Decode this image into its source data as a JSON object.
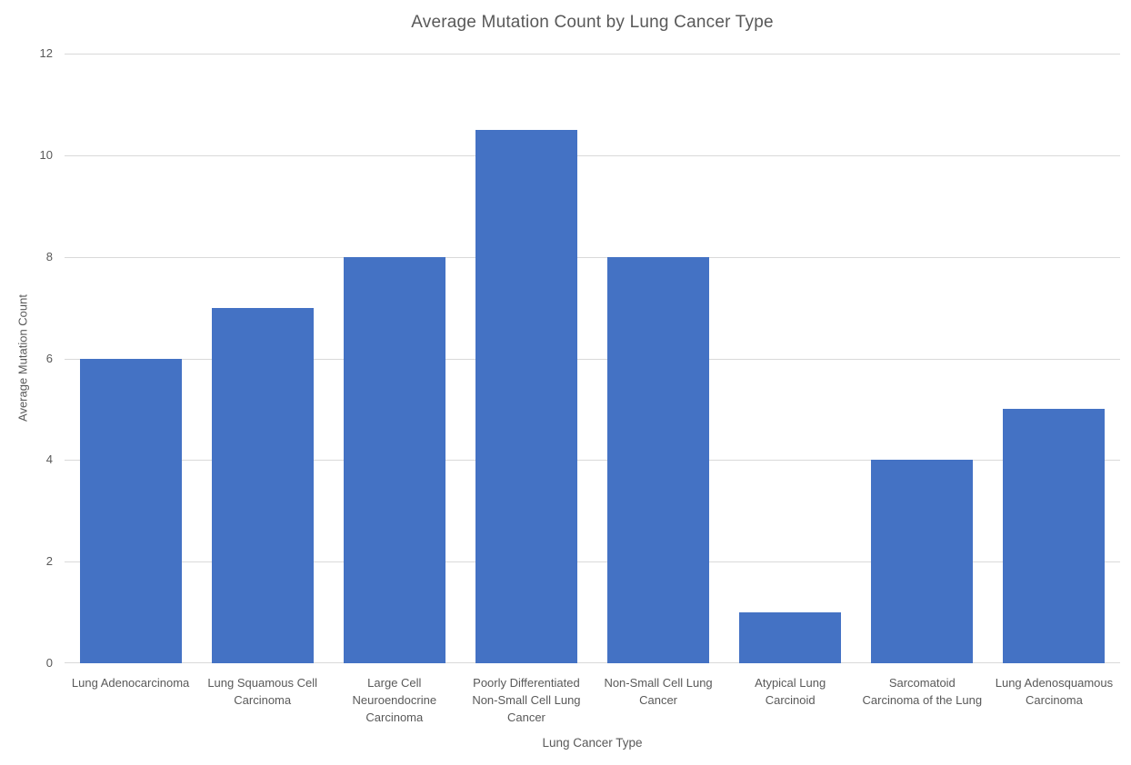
{
  "chart_data": {
    "type": "bar",
    "title": "Average Mutation Count by Lung Cancer Type",
    "xlabel": "Lung Cancer Type",
    "ylabel": "Average Mutation Count",
    "categories": [
      "Lung Adenocarcinoma",
      "Lung Squamous Cell Carcinoma",
      "Large Cell Neuroendocrine Carcinoma",
      "Poorly Differentiated Non-Small Cell Lung Cancer",
      "Non-Small Cell Lung Cancer",
      "Atypical Lung Carcinoid",
      "Sarcomatoid Carcinoma of the Lung",
      "Lung Adenosquamous Carcinoma"
    ],
    "category_label_lines": [
      [
        "Lung Adenocarcinoma"
      ],
      [
        "Lung Squamous Cell",
        "Carcinoma"
      ],
      [
        "Large Cell",
        "Neuroendocrine",
        "Carcinoma"
      ],
      [
        "Poorly Differentiated",
        "Non-Small Cell Lung",
        "Cancer"
      ],
      [
        "Non-Small Cell Lung",
        "Cancer"
      ],
      [
        "Atypical Lung",
        "Carcinoid"
      ],
      [
        "Sarcomatoid",
        "Carcinoma of the Lung"
      ],
      [
        "Lung Adenosquamous",
        "Carcinoma"
      ]
    ],
    "values": [
      6,
      7,
      8,
      10.5,
      8,
      1,
      4,
      5
    ],
    "ylim": [
      0,
      12
    ],
    "yticks": [
      0,
      2,
      4,
      6,
      8,
      10,
      12
    ],
    "grid": true,
    "legend": false,
    "colors": {
      "bar": "#4472C4",
      "gridline": "#D9D9D9",
      "axis_line": "#D9D9D9",
      "text": "#595959"
    }
  }
}
